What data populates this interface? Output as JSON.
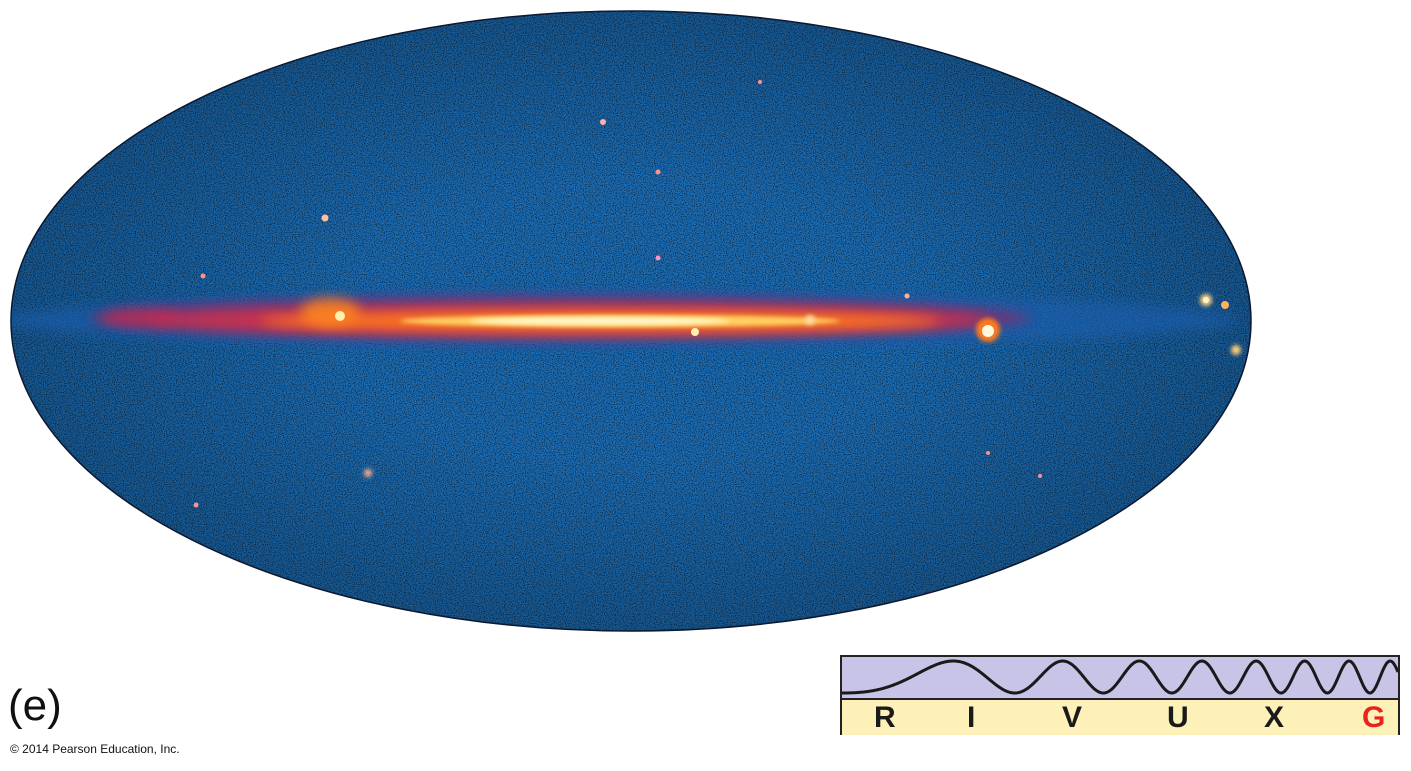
{
  "panel_label": "(e)",
  "copyright": "© 2014 Pearson Education, Inc.",
  "spectrum_bar": {
    "bands": [
      {
        "letter": "R",
        "highlighted": false
      },
      {
        "letter": "I",
        "highlighted": false
      },
      {
        "letter": "V",
        "highlighted": false
      },
      {
        "letter": "U",
        "highlighted": false
      },
      {
        "letter": "X",
        "highlighted": false
      },
      {
        "letter": "G",
        "highlighted": true
      }
    ],
    "wave_color": "#c8c4e8",
    "band_bg_color": "#fdf0b8",
    "normal_color": "#1a1a1a",
    "highlight_color": "#e8231c"
  },
  "colors": {
    "sky_background": "#1d6fb8",
    "plane_core": "#fff6c8",
    "plane_mid": "#ff8a1e",
    "plane_outer": "#d02a4a"
  }
}
